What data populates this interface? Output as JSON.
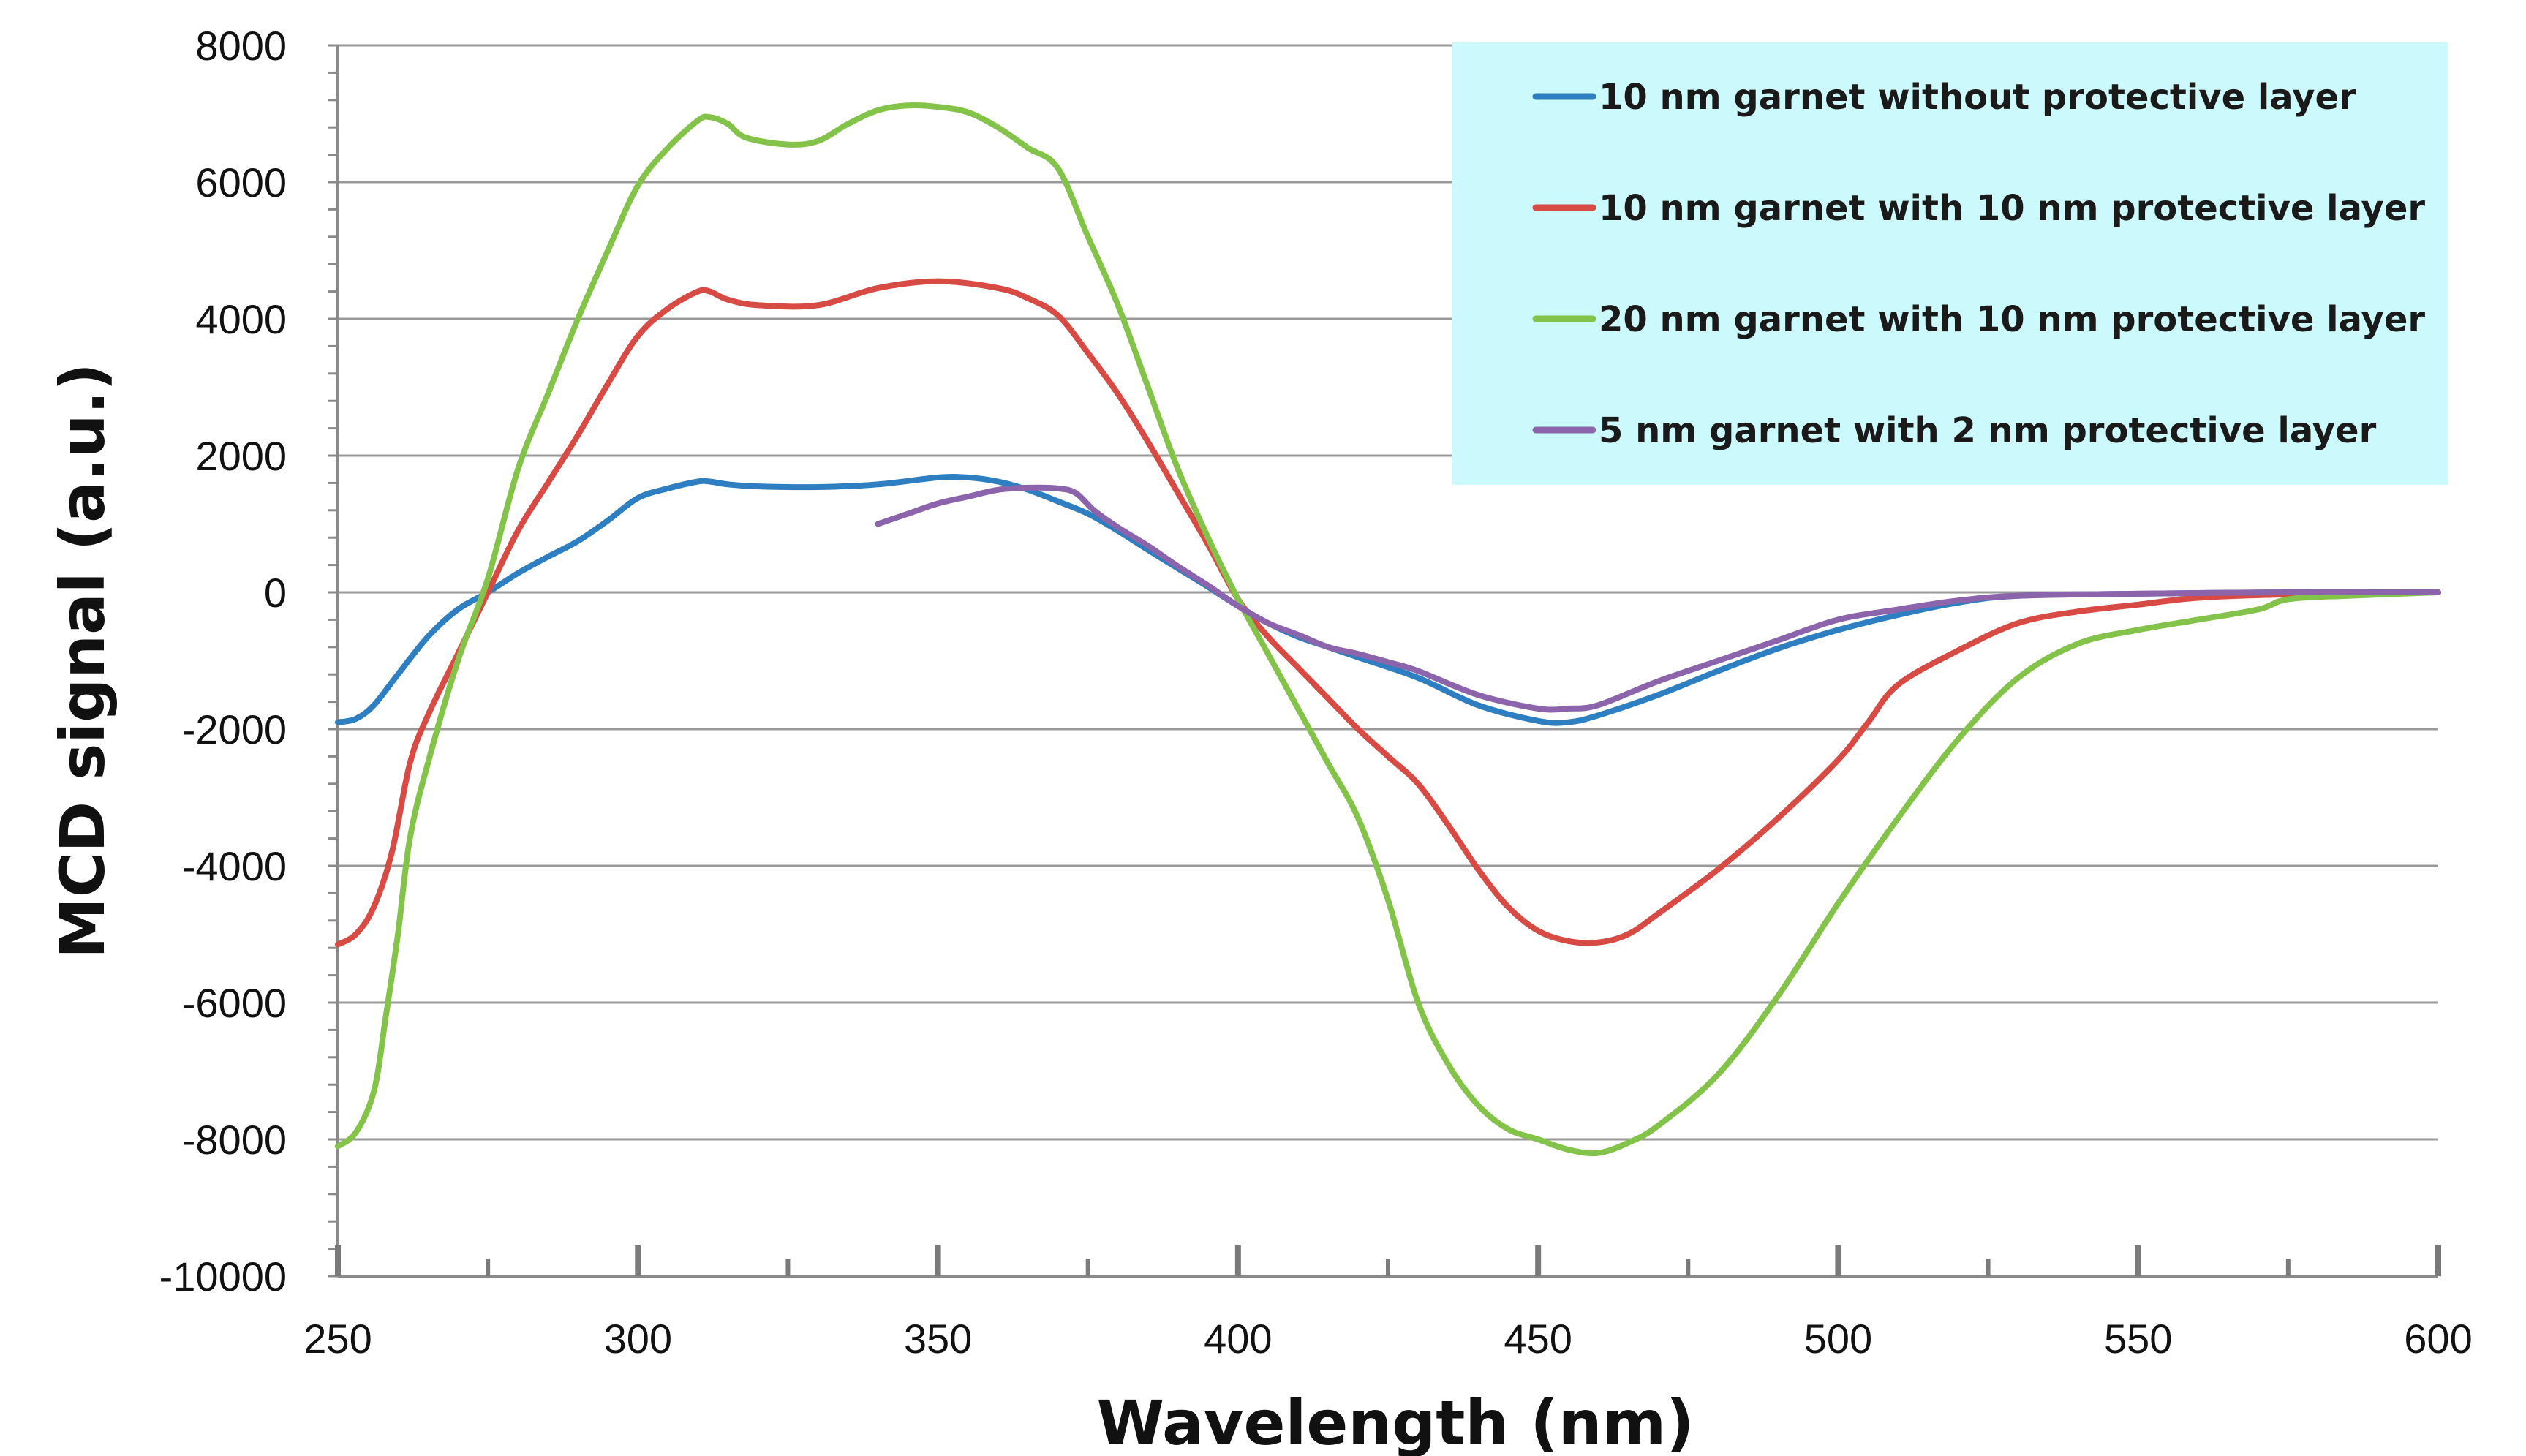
{
  "chart_data": {
    "type": "line",
    "title": "",
    "xlabel": "Wavelength (nm)",
    "ylabel": "MCD signal (a.u.)",
    "xlim": [
      250,
      600
    ],
    "ylim": [
      -10000,
      8000
    ],
    "xticks": [
      "250",
      "300",
      "350",
      "400",
      "450",
      "500",
      "550",
      "600"
    ],
    "yticks": [
      "8000",
      "6000",
      "4000",
      "2000",
      "0",
      "-2000",
      "-4000",
      "-6000",
      "-8000",
      "-10000"
    ],
    "grid": "horizontal",
    "legend_position": "top-right",
    "legend_background": "#ccf9fb",
    "series": [
      {
        "name": "10 nm garnet without protective layer",
        "color": "#2e7fc1",
        "points": [
          [
            250,
            -1900
          ],
          [
            253,
            -1850
          ],
          [
            256,
            -1650
          ],
          [
            260,
            -1200
          ],
          [
            265,
            -650
          ],
          [
            270,
            -250
          ],
          [
            275,
            0
          ],
          [
            280,
            280
          ],
          [
            285,
            520
          ],
          [
            290,
            750
          ],
          [
            295,
            1050
          ],
          [
            300,
            1380
          ],
          [
            305,
            1520
          ],
          [
            310,
            1620
          ],
          [
            312,
            1620
          ],
          [
            315,
            1580
          ],
          [
            320,
            1550
          ],
          [
            330,
            1540
          ],
          [
            340,
            1580
          ],
          [
            350,
            1680
          ],
          [
            355,
            1680
          ],
          [
            360,
            1620
          ],
          [
            365,
            1500
          ],
          [
            370,
            1330
          ],
          [
            375,
            1150
          ],
          [
            380,
            900
          ],
          [
            385,
            620
          ],
          [
            390,
            350
          ],
          [
            395,
            80
          ],
          [
            400,
            -200
          ],
          [
            405,
            -450
          ],
          [
            410,
            -650
          ],
          [
            415,
            -800
          ],
          [
            420,
            -950
          ],
          [
            430,
            -1250
          ],
          [
            440,
            -1650
          ],
          [
            450,
            -1880
          ],
          [
            455,
            -1900
          ],
          [
            460,
            -1800
          ],
          [
            470,
            -1500
          ],
          [
            480,
            -1150
          ],
          [
            490,
            -820
          ],
          [
            500,
            -550
          ],
          [
            510,
            -330
          ],
          [
            520,
            -150
          ],
          [
            530,
            -50
          ],
          [
            550,
            -20
          ],
          [
            575,
            0
          ],
          [
            600,
            0
          ]
        ]
      },
      {
        "name": "10 nm garnet with 10 nm protective layer",
        "color": "#d84a44",
        "points": [
          [
            250,
            -5150
          ],
          [
            253,
            -5000
          ],
          [
            256,
            -4600
          ],
          [
            259,
            -3800
          ],
          [
            262,
            -2500
          ],
          [
            265,
            -1800
          ],
          [
            270,
            -900
          ],
          [
            275,
            0
          ],
          [
            280,
            900
          ],
          [
            285,
            1600
          ],
          [
            290,
            2300
          ],
          [
            295,
            3050
          ],
          [
            300,
            3750
          ],
          [
            305,
            4150
          ],
          [
            310,
            4400
          ],
          [
            312,
            4400
          ],
          [
            315,
            4280
          ],
          [
            320,
            4200
          ],
          [
            330,
            4200
          ],
          [
            340,
            4450
          ],
          [
            350,
            4550
          ],
          [
            360,
            4450
          ],
          [
            365,
            4300
          ],
          [
            370,
            4050
          ],
          [
            375,
            3500
          ],
          [
            380,
            2900
          ],
          [
            385,
            2200
          ],
          [
            390,
            1450
          ],
          [
            395,
            700
          ],
          [
            400,
            -100
          ],
          [
            405,
            -650
          ],
          [
            410,
            -1100
          ],
          [
            415,
            -1550
          ],
          [
            420,
            -2000
          ],
          [
            425,
            -2400
          ],
          [
            430,
            -2800
          ],
          [
            435,
            -3400
          ],
          [
            440,
            -4050
          ],
          [
            445,
            -4600
          ],
          [
            450,
            -4950
          ],
          [
            455,
            -5100
          ],
          [
            460,
            -5120
          ],
          [
            465,
            -5000
          ],
          [
            470,
            -4700
          ],
          [
            480,
            -4050
          ],
          [
            490,
            -3300
          ],
          [
            500,
            -2450
          ],
          [
            505,
            -1900
          ],
          [
            510,
            -1350
          ],
          [
            520,
            -850
          ],
          [
            530,
            -450
          ],
          [
            540,
            -280
          ],
          [
            550,
            -180
          ],
          [
            560,
            -80
          ],
          [
            575,
            -30
          ],
          [
            600,
            0
          ]
        ]
      },
      {
        "name": "20 nm garnet with 10 nm protective layer",
        "color": "#84c34a",
        "points": [
          [
            250,
            -8100
          ],
          [
            253,
            -7900
          ],
          [
            256,
            -7300
          ],
          [
            258,
            -6200
          ],
          [
            260,
            -5000
          ],
          [
            262,
            -3600
          ],
          [
            265,
            -2500
          ],
          [
            270,
            -1000
          ],
          [
            275,
            200
          ],
          [
            280,
            1800
          ],
          [
            285,
            2900
          ],
          [
            290,
            4000
          ],
          [
            295,
            5000
          ],
          [
            300,
            5950
          ],
          [
            305,
            6500
          ],
          [
            310,
            6900
          ],
          [
            312,
            6950
          ],
          [
            315,
            6850
          ],
          [
            318,
            6650
          ],
          [
            325,
            6550
          ],
          [
            330,
            6600
          ],
          [
            335,
            6850
          ],
          [
            340,
            7050
          ],
          [
            345,
            7120
          ],
          [
            350,
            7100
          ],
          [
            355,
            7020
          ],
          [
            360,
            6800
          ],
          [
            365,
            6500
          ],
          [
            370,
            6200
          ],
          [
            375,
            5200
          ],
          [
            380,
            4200
          ],
          [
            385,
            3000
          ],
          [
            390,
            1800
          ],
          [
            395,
            800
          ],
          [
            400,
            -100
          ],
          [
            405,
            -900
          ],
          [
            410,
            -1700
          ],
          [
            415,
            -2500
          ],
          [
            420,
            -3300
          ],
          [
            425,
            -4500
          ],
          [
            430,
            -6000
          ],
          [
            435,
            -6900
          ],
          [
            440,
            -7500
          ],
          [
            445,
            -7850
          ],
          [
            450,
            -8000
          ],
          [
            455,
            -8150
          ],
          [
            460,
            -8200
          ],
          [
            465,
            -8050
          ],
          [
            470,
            -7800
          ],
          [
            480,
            -7050
          ],
          [
            490,
            -5900
          ],
          [
            500,
            -4550
          ],
          [
            510,
            -3300
          ],
          [
            520,
            -2150
          ],
          [
            530,
            -1250
          ],
          [
            540,
            -750
          ],
          [
            550,
            -550
          ],
          [
            560,
            -400
          ],
          [
            570,
            -250
          ],
          [
            575,
            -100
          ],
          [
            585,
            -50
          ],
          [
            600,
            0
          ]
        ]
      },
      {
        "name": "5 nm garnet with 2 nm protective layer",
        "color": "#8b64ab",
        "points": [
          [
            340,
            1000
          ],
          [
            345,
            1150
          ],
          [
            350,
            1300
          ],
          [
            355,
            1400
          ],
          [
            360,
            1500
          ],
          [
            365,
            1530
          ],
          [
            370,
            1520
          ],
          [
            373,
            1450
          ],
          [
            376,
            1200
          ],
          [
            380,
            950
          ],
          [
            385,
            680
          ],
          [
            390,
            380
          ],
          [
            395,
            100
          ],
          [
            400,
            -200
          ],
          [
            405,
            -450
          ],
          [
            410,
            -620
          ],
          [
            415,
            -800
          ],
          [
            420,
            -900
          ],
          [
            425,
            -1020
          ],
          [
            430,
            -1150
          ],
          [
            440,
            -1500
          ],
          [
            450,
            -1700
          ],
          [
            455,
            -1700
          ],
          [
            460,
            -1650
          ],
          [
            470,
            -1300
          ],
          [
            480,
            -1000
          ],
          [
            490,
            -700
          ],
          [
            500,
            -400
          ],
          [
            510,
            -250
          ],
          [
            520,
            -120
          ],
          [
            530,
            -50
          ],
          [
            550,
            -20
          ],
          [
            575,
            0
          ],
          [
            600,
            0
          ]
        ]
      }
    ]
  }
}
